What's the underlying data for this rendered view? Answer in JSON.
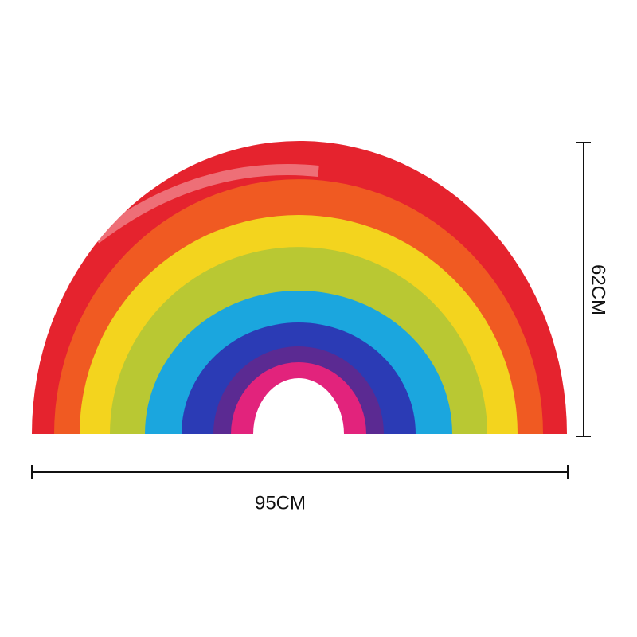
{
  "dimensions": {
    "width": "95CM",
    "height": "62CM"
  }
}
